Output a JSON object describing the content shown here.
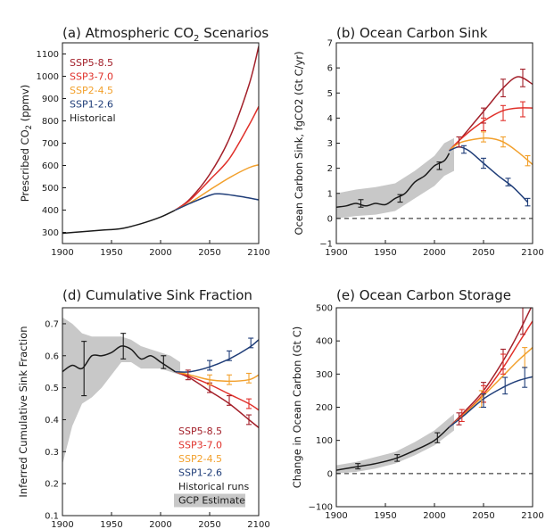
{
  "colors": {
    "ssp585": "#a3202a",
    "ssp370": "#e0302a",
    "ssp245": "#f2a02c",
    "ssp126": "#1f3d78",
    "historical": "#1a1a1a",
    "gcp": "#c8c8c8"
  },
  "chart_data": [
    {
      "id": "a",
      "type": "line",
      "title": "(a) Atmospheric CO",
      "title_sub": "2",
      "title_tail": " Scenarios",
      "ylabel": "Prescribed CO",
      "ylabel_sub": "2",
      "ylabel_tail": " (ppmv)",
      "xlabel": "",
      "xlim": [
        1900,
        2100
      ],
      "ylim": [
        250,
        1150
      ],
      "xticks": [
        "1900",
        "1950",
        "2000",
        "2050",
        "2100"
      ],
      "yticks": [
        "300",
        "400",
        "500",
        "600",
        "700",
        "800",
        "900",
        "1000",
        "1100"
      ],
      "legend": [
        "SSP5-8.5",
        "SSP3-7.0",
        "SSP2-4.5",
        "SSP1-2.6",
        "Historical"
      ],
      "series": [
        {
          "name": "Historical",
          "key": "historical",
          "x": [
            1900,
            1920,
            1940,
            1960,
            1980,
            2000,
            2015
          ],
          "y": [
            296,
            303,
            310,
            317,
            339,
            369,
            400
          ]
        },
        {
          "name": "SSP5-8.5",
          "key": "ssp585",
          "x": [
            2015,
            2030,
            2050,
            2070,
            2090,
            2100
          ],
          "y": [
            400,
            450,
            560,
            720,
            960,
            1135
          ]
        },
        {
          "name": "SSP3-7.0",
          "key": "ssp370",
          "x": [
            2015,
            2030,
            2050,
            2070,
            2090,
            2100
          ],
          "y": [
            400,
            445,
            535,
            630,
            780,
            865
          ]
        },
        {
          "name": "SSP2-4.5",
          "key": "ssp245",
          "x": [
            2015,
            2030,
            2050,
            2070,
            2090,
            2100
          ],
          "y": [
            400,
            433,
            490,
            545,
            590,
            603
          ]
        },
        {
          "name": "SSP1-2.6",
          "key": "ssp126",
          "x": [
            2015,
            2030,
            2050,
            2060,
            2080,
            2100
          ],
          "y": [
            400,
            430,
            466,
            473,
            462,
            446
          ]
        }
      ]
    },
    {
      "id": "b",
      "type": "line",
      "title": "(b) Ocean Carbon Sink",
      "ylabel": "Ocean Carbon Sink, fgCO2 (Gt C/yr)",
      "xlabel": "",
      "xlim": [
        1900,
        2100
      ],
      "ylim": [
        -1,
        7
      ],
      "xticks": [
        "1900",
        "1950",
        "2000",
        "2050",
        "2100"
      ],
      "yticks": [
        "−1",
        "0",
        "1",
        "2",
        "3",
        "4",
        "5",
        "6",
        "7"
      ],
      "zero_line": true,
      "gcp_band": {
        "x": [
          1900,
          1920,
          1940,
          1960,
          1980,
          2000,
          2010,
          2020
        ],
        "lower": [
          0.0,
          0.1,
          0.15,
          0.3,
          0.8,
          1.3,
          1.7,
          1.9
        ],
        "upper": [
          1.0,
          1.15,
          1.25,
          1.4,
          1.9,
          2.5,
          3.0,
          3.2
        ]
      },
      "series": [
        {
          "name": "Historical",
          "key": "historical",
          "x": [
            1900,
            1910,
            1920,
            1930,
            1940,
            1950,
            1960,
            1970,
            1980,
            1990,
            2000,
            2010,
            2015
          ],
          "y": [
            0.45,
            0.5,
            0.6,
            0.5,
            0.6,
            0.55,
            0.8,
            1.0,
            1.45,
            1.7,
            2.1,
            2.3,
            2.6
          ]
        },
        {
          "name": "SSP5-8.5",
          "key": "ssp585",
          "x": [
            2015,
            2025,
            2040,
            2055,
            2070,
            2085,
            2100
          ],
          "y": [
            2.7,
            3.1,
            3.8,
            4.5,
            5.2,
            5.65,
            5.35
          ]
        },
        {
          "name": "SSP3-7.0",
          "key": "ssp370",
          "x": [
            2015,
            2025,
            2040,
            2055,
            2070,
            2085,
            2100
          ],
          "y": [
            2.7,
            3.1,
            3.6,
            4.0,
            4.3,
            4.4,
            4.4
          ]
        },
        {
          "name": "SSP2-4.5",
          "key": "ssp245",
          "x": [
            2015,
            2025,
            2040,
            2055,
            2070,
            2085,
            2100
          ],
          "y": [
            2.7,
            3.0,
            3.15,
            3.2,
            3.05,
            2.65,
            2.15
          ]
        },
        {
          "name": "SSP1-2.6",
          "key": "ssp126",
          "x": [
            2015,
            2025,
            2035,
            2050,
            2065,
            2080,
            2095
          ],
          "y": [
            2.7,
            2.85,
            2.7,
            2.2,
            1.7,
            1.25,
            0.65
          ]
        }
      ],
      "errorbars": [
        {
          "key": "historical",
          "x": 1925,
          "y": 0.6,
          "e": 0.15
        },
        {
          "key": "historical",
          "x": 1965,
          "y": 0.8,
          "e": 0.15
        },
        {
          "key": "historical",
          "x": 2005,
          "y": 2.1,
          "e": 0.15
        },
        {
          "key": "ssp585",
          "x": 2025,
          "y": 3.05,
          "e": 0.2
        },
        {
          "key": "ssp585",
          "x": 2050,
          "y": 4.1,
          "e": 0.3
        },
        {
          "key": "ssp585",
          "x": 2070,
          "y": 5.2,
          "e": 0.35
        },
        {
          "key": "ssp585",
          "x": 2090,
          "y": 5.6,
          "e": 0.35
        },
        {
          "key": "ssp370",
          "x": 2050,
          "y": 3.75,
          "e": 0.25
        },
        {
          "key": "ssp370",
          "x": 2070,
          "y": 4.2,
          "e": 0.3
        },
        {
          "key": "ssp370",
          "x": 2090,
          "y": 4.35,
          "e": 0.3
        },
        {
          "key": "ssp245",
          "x": 2050,
          "y": 3.25,
          "e": 0.2
        },
        {
          "key": "ssp245",
          "x": 2070,
          "y": 3.05,
          "e": 0.2
        },
        {
          "key": "ssp245",
          "x": 2095,
          "y": 2.3,
          "e": 0.2
        },
        {
          "key": "ssp126",
          "x": 2030,
          "y": 2.75,
          "e": 0.15
        },
        {
          "key": "ssp126",
          "x": 2050,
          "y": 2.2,
          "e": 0.2
        },
        {
          "key": "ssp126",
          "x": 2075,
          "y": 1.45,
          "e": 0.15
        },
        {
          "key": "ssp126",
          "x": 2095,
          "y": 0.65,
          "e": 0.15
        }
      ]
    },
    {
      "id": "d",
      "type": "line",
      "title": "(d) Cumulative Sink Fraction",
      "ylabel": "Inferred Cumulative Sink Fraction",
      "xlabel": "",
      "xlim": [
        1900,
        2100
      ],
      "ylim": [
        0.1,
        0.75
      ],
      "xticks": [
        "1900",
        "1950",
        "2000",
        "2050",
        "2100"
      ],
      "yticks": [
        "0.1",
        "0.2",
        "0.3",
        "0.4",
        "0.5",
        "0.6",
        "0.7"
      ],
      "legend": [
        "SSP5-8.5",
        "SSP3-7.0",
        "SSP2-4.5",
        "SSP1-2.6",
        "Historical runs",
        "GCP Estimate"
      ],
      "gcp_band": {
        "x": [
          1900,
          1910,
          1920,
          1930,
          1940,
          1950,
          1960,
          1970,
          1980,
          1990,
          2000,
          2010,
          2020
        ],
        "lower": [
          0.26,
          0.38,
          0.45,
          0.47,
          0.5,
          0.54,
          0.58,
          0.58,
          0.56,
          0.56,
          0.56,
          0.55,
          0.54
        ],
        "upper": [
          0.72,
          0.7,
          0.67,
          0.66,
          0.66,
          0.66,
          0.66,
          0.65,
          0.63,
          0.62,
          0.61,
          0.6,
          0.58
        ]
      },
      "series": [
        {
          "name": "Historical runs",
          "key": "historical",
          "x": [
            1900,
            1910,
            1920,
            1930,
            1940,
            1950,
            1960,
            1970,
            1980,
            1990,
            2000,
            2010,
            2015
          ],
          "y": [
            0.55,
            0.57,
            0.56,
            0.6,
            0.6,
            0.61,
            0.63,
            0.62,
            0.59,
            0.6,
            0.58,
            0.56,
            0.55
          ]
        },
        {
          "name": "SSP5-8.5",
          "key": "ssp585",
          "x": [
            2015,
            2030,
            2050,
            2070,
            2090,
            2100
          ],
          "y": [
            0.55,
            0.53,
            0.49,
            0.45,
            0.4,
            0.375
          ]
        },
        {
          "name": "SSP3-7.0",
          "key": "ssp370",
          "x": [
            2015,
            2030,
            2050,
            2070,
            2090,
            2100
          ],
          "y": [
            0.55,
            0.535,
            0.51,
            0.48,
            0.45,
            0.43
          ]
        },
        {
          "name": "SSP2-4.5",
          "key": "ssp245",
          "x": [
            2015,
            2030,
            2050,
            2070,
            2090,
            2100
          ],
          "y": [
            0.55,
            0.54,
            0.525,
            0.52,
            0.525,
            0.54
          ]
        },
        {
          "name": "SSP1-2.6",
          "key": "ssp126",
          "x": [
            2015,
            2030,
            2050,
            2070,
            2090,
            2100
          ],
          "y": [
            0.55,
            0.55,
            0.565,
            0.59,
            0.625,
            0.65
          ]
        }
      ],
      "errorbars": [
        {
          "key": "historical",
          "x": 1922,
          "y": 0.56,
          "e": 0.085
        },
        {
          "key": "historical",
          "x": 1962,
          "y": 0.63,
          "e": 0.04
        },
        {
          "key": "historical",
          "x": 2003,
          "y": 0.58,
          "e": 0.02
        },
        {
          "key": "ssp585",
          "x": 2028,
          "y": 0.54,
          "e": 0.015
        },
        {
          "key": "ssp585",
          "x": 2050,
          "y": 0.5,
          "e": 0.015
        },
        {
          "key": "ssp585",
          "x": 2070,
          "y": 0.46,
          "e": 0.015
        },
        {
          "key": "ssp585",
          "x": 2090,
          "y": 0.4,
          "e": 0.015
        },
        {
          "key": "ssp370",
          "x": 2090,
          "y": 0.45,
          "e": 0.015
        },
        {
          "key": "ssp245",
          "x": 2050,
          "y": 0.525,
          "e": 0.015
        },
        {
          "key": "ssp245",
          "x": 2070,
          "y": 0.525,
          "e": 0.015
        },
        {
          "key": "ssp245",
          "x": 2090,
          "y": 0.53,
          "e": 0.015
        },
        {
          "key": "ssp126",
          "x": 2050,
          "y": 0.57,
          "e": 0.015
        },
        {
          "key": "ssp126",
          "x": 2070,
          "y": 0.6,
          "e": 0.015
        },
        {
          "key": "ssp126",
          "x": 2092,
          "y": 0.64,
          "e": 0.015
        }
      ]
    },
    {
      "id": "e",
      "type": "line",
      "title": "(e) Ocean Carbon Storage",
      "ylabel": "Change in Ocean Carbon (Gt C)",
      "xlabel": "",
      "xlim": [
        1900,
        2100
      ],
      "ylim": [
        -100,
        500
      ],
      "xticks": [
        "1900",
        "1950",
        "2000",
        "2050",
        "2100"
      ],
      "yticks": [
        "−100",
        "0",
        "100",
        "200",
        "300",
        "400",
        "500"
      ],
      "zero_line": true,
      "gcp_band": {
        "x": [
          1900,
          1920,
          1940,
          1960,
          1980,
          2000,
          2020
        ],
        "lower": [
          0,
          5,
          15,
          30,
          55,
          85,
          130
        ],
        "upper": [
          25,
          35,
          50,
          65,
          95,
          130,
          180
        ]
      },
      "series": [
        {
          "name": "Historical",
          "key": "historical",
          "x": [
            1900,
            1920,
            1940,
            1960,
            1980,
            2000,
            2015
          ],
          "y": [
            10,
            20,
            30,
            45,
            70,
            100,
            140
          ]
        },
        {
          "name": "SSP5-8.5",
          "key": "ssp585",
          "x": [
            2015,
            2030,
            2050,
            2070,
            2085,
            2100
          ],
          "y": [
            140,
            185,
            250,
            340,
            420,
            510
          ]
        },
        {
          "name": "SSP3-7.0",
          "key": "ssp370",
          "x": [
            2015,
            2030,
            2050,
            2070,
            2085,
            2100
          ],
          "y": [
            140,
            180,
            240,
            320,
            390,
            460
          ]
        },
        {
          "name": "SSP2-4.5",
          "key": "ssp245",
          "x": [
            2015,
            2030,
            2050,
            2070,
            2085,
            2100
          ],
          "y": [
            140,
            178,
            235,
            295,
            340,
            380
          ]
        },
        {
          "name": "SSP1-2.6",
          "key": "ssp126",
          "x": [
            2015,
            2030,
            2050,
            2070,
            2085,
            2100
          ],
          "y": [
            140,
            175,
            225,
            260,
            280,
            292
          ]
        }
      ],
      "errorbars": [
        {
          "key": "historical",
          "x": 1922,
          "y": 22,
          "e": 8
        },
        {
          "key": "historical",
          "x": 1962,
          "y": 47,
          "e": 10
        },
        {
          "key": "historical",
          "x": 2003,
          "y": 108,
          "e": 15
        },
        {
          "key": "ssp585",
          "x": 2025,
          "y": 165,
          "e": 18
        },
        {
          "key": "ssp585",
          "x": 2050,
          "y": 245,
          "e": 30
        },
        {
          "key": "ssp585",
          "x": 2070,
          "y": 345,
          "e": 30
        },
        {
          "key": "ssp585",
          "x": 2090,
          "y": 460,
          "e": 40
        },
        {
          "key": "ssp370",
          "x": 2028,
          "y": 175,
          "e": 18
        },
        {
          "key": "ssp370",
          "x": 2050,
          "y": 240,
          "e": 25
        },
        {
          "key": "ssp370",
          "x": 2070,
          "y": 330,
          "e": 30
        },
        {
          "key": "ssp245",
          "x": 2048,
          "y": 225,
          "e": 25
        },
        {
          "key": "ssp245",
          "x": 2092,
          "y": 350,
          "e": 30
        },
        {
          "key": "ssp126",
          "x": 2050,
          "y": 220,
          "e": 20
        },
        {
          "key": "ssp126",
          "x": 2072,
          "y": 265,
          "e": 25
        },
        {
          "key": "ssp126",
          "x": 2092,
          "y": 290,
          "e": 30
        }
      ]
    }
  ]
}
